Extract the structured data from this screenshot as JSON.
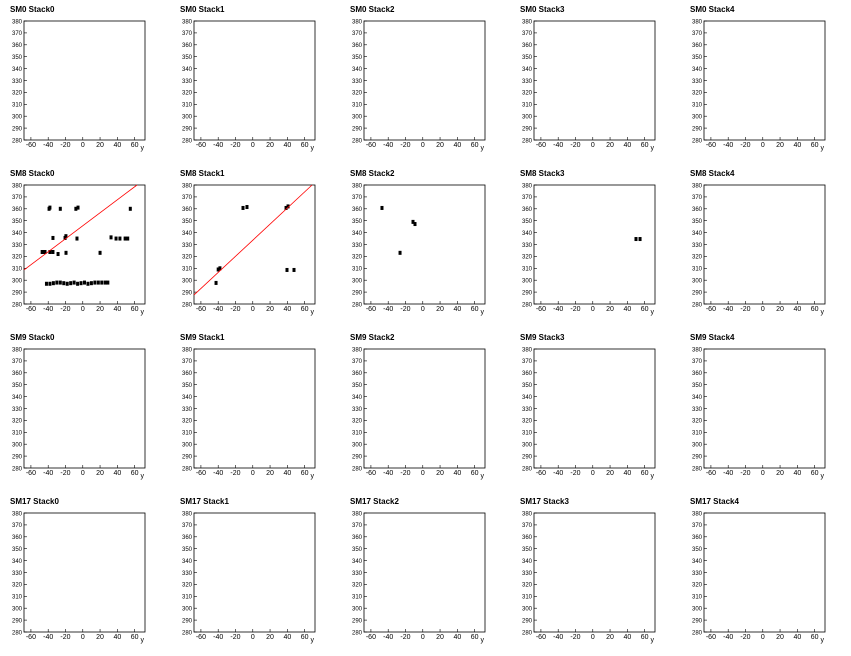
{
  "chart_data": [
    {
      "type": "scatter",
      "title": "SM0 Stack0",
      "xlabel": "y",
      "xlim": [
        -68,
        72
      ],
      "ylim": [
        280,
        380
      ],
      "xticks": [
        -60,
        -40,
        -20,
        0,
        20,
        40,
        60
      ],
      "yticks": [
        280,
        290,
        300,
        310,
        320,
        330,
        340,
        350,
        360,
        370,
        380
      ],
      "series": []
    },
    {
      "type": "scatter",
      "title": "SM0 Stack1",
      "xlabel": "y",
      "xlim": [
        -68,
        72
      ],
      "ylim": [
        280,
        380
      ],
      "xticks": [
        -60,
        -40,
        -20,
        0,
        20,
        40,
        60
      ],
      "yticks": [
        280,
        290,
        300,
        310,
        320,
        330,
        340,
        350,
        360,
        370,
        380
      ],
      "series": []
    },
    {
      "type": "scatter",
      "title": "SM0 Stack2",
      "xlabel": "y",
      "xlim": [
        -68,
        72
      ],
      "ylim": [
        280,
        380
      ],
      "xticks": [
        -60,
        -40,
        -20,
        0,
        20,
        40,
        60
      ],
      "yticks": [
        280,
        290,
        300,
        310,
        320,
        330,
        340,
        350,
        360,
        370,
        380
      ],
      "series": []
    },
    {
      "type": "scatter",
      "title": "SM0 Stack3",
      "xlabel": "y",
      "xlim": [
        -68,
        72
      ],
      "ylim": [
        280,
        380
      ],
      "xticks": [
        -60,
        -40,
        -20,
        0,
        20,
        40,
        60
      ],
      "yticks": [
        280,
        290,
        300,
        310,
        320,
        330,
        340,
        350,
        360,
        370,
        380
      ],
      "series": []
    },
    {
      "type": "scatter",
      "title": "SM0 Stack4",
      "xlabel": "y",
      "xlim": [
        -68,
        72
      ],
      "ylim": [
        280,
        380
      ],
      "xticks": [
        -60,
        -40,
        -20,
        0,
        20,
        40,
        60
      ],
      "yticks": [
        280,
        290,
        300,
        310,
        320,
        330,
        340,
        350,
        360,
        370,
        380
      ],
      "series": []
    },
    {
      "type": "scatter",
      "title": "SM8 Stack0",
      "xlabel": "y",
      "xlim": [
        -68,
        72
      ],
      "ylim": [
        280,
        380
      ],
      "xticks": [
        -60,
        -40,
        -20,
        0,
        20,
        40,
        60
      ],
      "yticks": [
        280,
        290,
        300,
        310,
        320,
        330,
        340,
        350,
        360,
        370,
        380
      ],
      "series": [
        {
          "color": "#000000",
          "x": [
            -39,
            -38,
            -26,
            -8,
            -5.5,
            55,
            -34.5,
            -20.5,
            -19.5,
            -6.7,
            32.7,
            38.5,
            43,
            49,
            52,
            -47,
            -43.7,
            -38,
            -34.5,
            -28.6,
            -19.4,
            20,
            -42,
            -38,
            -34,
            -30,
            -26,
            -22,
            -18,
            -14,
            -10,
            -6,
            -2,
            2,
            6,
            10,
            14,
            18,
            22,
            26,
            29
          ],
          "y": [
            360,
            361,
            360,
            360,
            361,
            360,
            335.5,
            335.5,
            337,
            335,
            336,
            335,
            335,
            335,
            335,
            323.7,
            323.7,
            323.7,
            323.7,
            322,
            323,
            323,
            297,
            297,
            297.5,
            298,
            298,
            297.5,
            297,
            297.5,
            298,
            297,
            297.5,
            298,
            297,
            297.5,
            298,
            298,
            298,
            298,
            298
          ]
        }
      ],
      "lines": [
        {
          "color": "#ff0000",
          "x": [
            -68,
            62.8
          ],
          "y": [
            308.6,
            380
          ]
        }
      ]
    },
    {
      "type": "scatter",
      "title": "SM8 Stack1",
      "xlabel": "y",
      "xlim": [
        -68,
        72
      ],
      "ylim": [
        280,
        380
      ],
      "xticks": [
        -60,
        -40,
        -20,
        0,
        20,
        40,
        60
      ],
      "yticks": [
        280,
        290,
        300,
        310,
        320,
        330,
        340,
        350,
        360,
        370,
        380
      ],
      "series": [
        {
          "color": "#000000",
          "x": [
            -40,
            -38,
            -42.5,
            -11.3,
            -6.7,
            38.5,
            40.8,
            39.6,
            47.7
          ],
          "y": [
            309,
            310,
            297.7,
            360.7,
            361.5,
            360.7,
            362,
            308.6,
            308.6
          ]
        }
      ],
      "lines": [
        {
          "color": "#ff0000",
          "x": [
            -68,
            68.6
          ],
          "y": [
            287.6,
            380
          ]
        }
      ]
    },
    {
      "type": "scatter",
      "title": "SM8 Stack2",
      "xlabel": "y",
      "xlim": [
        -68,
        72
      ],
      "ylim": [
        280,
        380
      ],
      "xticks": [
        -60,
        -40,
        -20,
        0,
        20,
        40,
        60
      ],
      "yticks": [
        280,
        290,
        300,
        310,
        320,
        330,
        340,
        350,
        360,
        370,
        380
      ],
      "series": [
        {
          "color": "#000000",
          "x": [
            -47.2,
            -26.3,
            -11.3,
            -9
          ],
          "y": [
            360.7,
            323,
            349,
            347.2
          ]
        }
      ]
    },
    {
      "type": "scatter",
      "title": "SM8 Stack3",
      "xlabel": "y",
      "xlim": [
        -68,
        72
      ],
      "ylim": [
        280,
        380
      ],
      "xticks": [
        -60,
        -40,
        -20,
        0,
        20,
        40,
        60
      ],
      "yticks": [
        280,
        290,
        300,
        310,
        320,
        330,
        340,
        350,
        360,
        370,
        380
      ],
      "series": [
        {
          "color": "#000000",
          "x": [
            50,
            54.7
          ],
          "y": [
            334.6,
            334.6
          ]
        }
      ]
    },
    {
      "type": "scatter",
      "title": "SM8 Stack4",
      "xlabel": "y",
      "xlim": [
        -68,
        72
      ],
      "ylim": [
        280,
        380
      ],
      "xticks": [
        -60,
        -40,
        -20,
        0,
        20,
        40,
        60
      ],
      "yticks": [
        280,
        290,
        300,
        310,
        320,
        330,
        340,
        350,
        360,
        370,
        380
      ],
      "series": []
    },
    {
      "type": "scatter",
      "title": "SM9 Stack0",
      "xlabel": "y",
      "xlim": [
        -68,
        72
      ],
      "ylim": [
        280,
        380
      ],
      "xticks": [
        -60,
        -40,
        -20,
        0,
        20,
        40,
        60
      ],
      "yticks": [
        280,
        290,
        300,
        310,
        320,
        330,
        340,
        350,
        360,
        370,
        380
      ],
      "series": []
    },
    {
      "type": "scatter",
      "title": "SM9 Stack1",
      "xlabel": "y",
      "xlim": [
        -68,
        72
      ],
      "ylim": [
        280,
        380
      ],
      "xticks": [
        -60,
        -40,
        -20,
        0,
        20,
        40,
        60
      ],
      "yticks": [
        280,
        290,
        300,
        310,
        320,
        330,
        340,
        350,
        360,
        370,
        380
      ],
      "series": []
    },
    {
      "type": "scatter",
      "title": "SM9 Stack2",
      "xlabel": "y",
      "xlim": [
        -68,
        72
      ],
      "ylim": [
        280,
        380
      ],
      "xticks": [
        -60,
        -40,
        -20,
        0,
        20,
        40,
        60
      ],
      "yticks": [
        280,
        290,
        300,
        310,
        320,
        330,
        340,
        350,
        360,
        370,
        380
      ],
      "series": []
    },
    {
      "type": "scatter",
      "title": "SM9 Stack3",
      "xlabel": "y",
      "xlim": [
        -68,
        72
      ],
      "ylim": [
        280,
        380
      ],
      "xticks": [
        -60,
        -40,
        -20,
        0,
        20,
        40,
        60
      ],
      "yticks": [
        280,
        290,
        300,
        310,
        320,
        330,
        340,
        350,
        360,
        370,
        380
      ],
      "series": []
    },
    {
      "type": "scatter",
      "title": "SM9 Stack4",
      "xlabel": "y",
      "xlim": [
        -68,
        72
      ],
      "ylim": [
        280,
        380
      ],
      "xticks": [
        -60,
        -40,
        -20,
        0,
        20,
        40,
        60
      ],
      "yticks": [
        280,
        290,
        300,
        310,
        320,
        330,
        340,
        350,
        360,
        370,
        380
      ],
      "series": []
    },
    {
      "type": "scatter",
      "title": "SM17 Stack0",
      "xlabel": "y",
      "xlim": [
        -68,
        72
      ],
      "ylim": [
        280,
        380
      ],
      "xticks": [
        -60,
        -40,
        -20,
        0,
        20,
        40,
        60
      ],
      "yticks": [
        280,
        290,
        300,
        310,
        320,
        330,
        340,
        350,
        360,
        370,
        380
      ],
      "series": []
    },
    {
      "type": "scatter",
      "title": "SM17 Stack1",
      "xlabel": "y",
      "xlim": [
        -68,
        72
      ],
      "ylim": [
        280,
        380
      ],
      "xticks": [
        -60,
        -40,
        -20,
        0,
        20,
        40,
        60
      ],
      "yticks": [
        280,
        290,
        300,
        310,
        320,
        330,
        340,
        350,
        360,
        370,
        380
      ],
      "series": []
    },
    {
      "type": "scatter",
      "title": "SM17 Stack2",
      "xlabel": "y",
      "xlim": [
        -68,
        72
      ],
      "ylim": [
        280,
        380
      ],
      "xticks": [
        -60,
        -40,
        -20,
        0,
        20,
        40,
        60
      ],
      "yticks": [
        280,
        290,
        300,
        310,
        320,
        330,
        340,
        350,
        360,
        370,
        380
      ],
      "series": []
    },
    {
      "type": "scatter",
      "title": "SM17 Stack3",
      "xlabel": "y",
      "xlim": [
        -68,
        72
      ],
      "ylim": [
        280,
        380
      ],
      "xticks": [
        -60,
        -40,
        -20,
        0,
        20,
        40,
        60
      ],
      "yticks": [
        280,
        290,
        300,
        310,
        320,
        330,
        340,
        350,
        360,
        370,
        380
      ],
      "series": []
    },
    {
      "type": "scatter",
      "title": "SM17 Stack4",
      "xlabel": "y",
      "xlim": [
        -68,
        72
      ],
      "ylim": [
        280,
        380
      ],
      "xticks": [
        -60,
        -40,
        -20,
        0,
        20,
        40,
        60
      ],
      "yticks": [
        280,
        290,
        300,
        310,
        320,
        330,
        340,
        350,
        360,
        370,
        380
      ],
      "series": []
    }
  ]
}
